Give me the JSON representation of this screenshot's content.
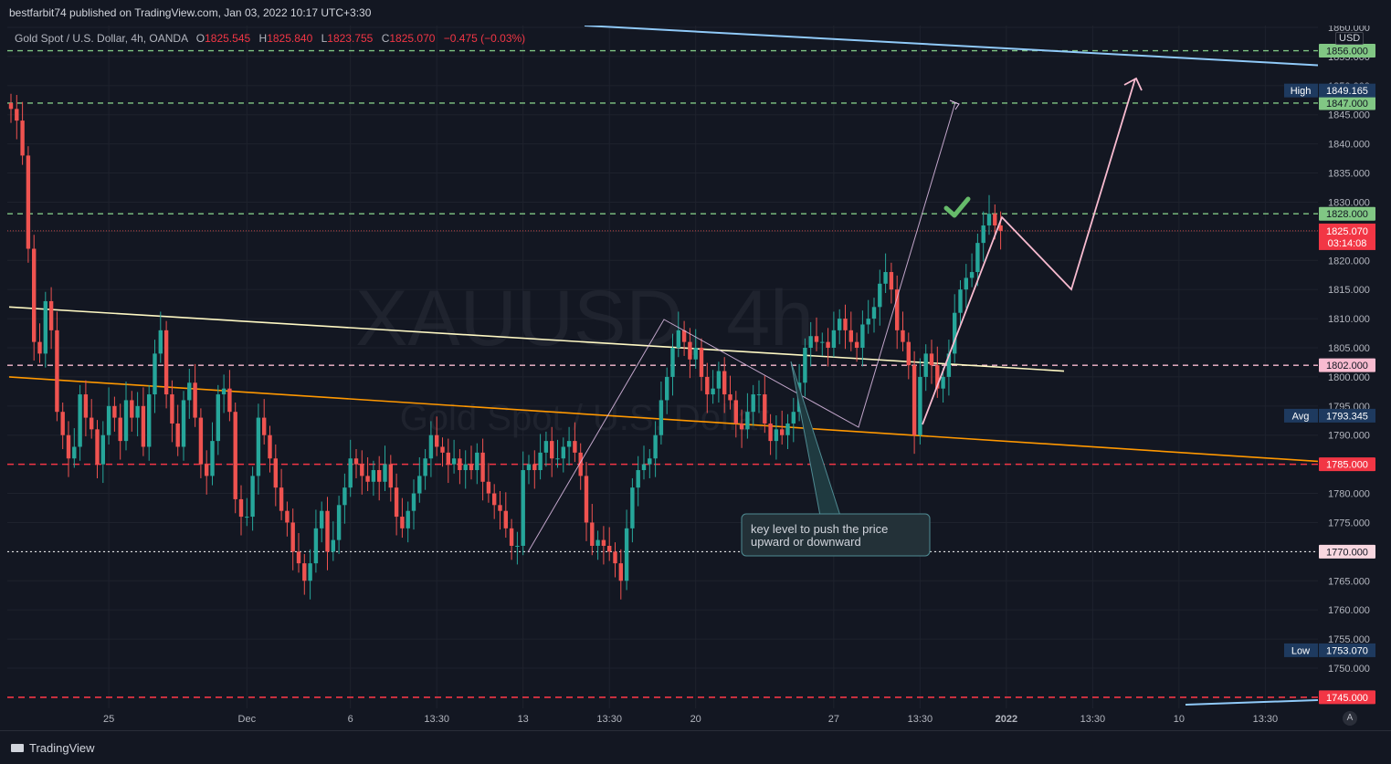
{
  "header": {
    "publisher": "bestfarbit74 published on TradingView.com, Jan 03, 2022 10:17 UTC+3:30"
  },
  "legend": {
    "symbol": "Gold Spot / U.S. Dollar, 4h, OANDA",
    "open_label": "O",
    "open": "1825.545",
    "high_label": "H",
    "high": "1825.840",
    "low_label": "L",
    "low": "1823.755",
    "close_label": "C",
    "close": "1825.070",
    "change": "−0.475 (−0.03%)"
  },
  "watermark": {
    "symbol": "XAUUSD, 4h",
    "name": "Gold Spot / U.S. Dollar"
  },
  "currency": "USD",
  "footer": {
    "brand": "TradingView",
    "auto_label": "A"
  },
  "colors": {
    "background": "#131722",
    "up_candle": "#26a69a",
    "down_candle": "#ef5350",
    "green_level": "#81c784",
    "red_level": "#f23645",
    "white_level": "#ffffff",
    "pink_level": "#f8bbd0",
    "yellow_trendline": "#fff9c4",
    "orange_trendline": "#ff9800",
    "blue_trendline": "#90caf9",
    "projection": "#f8bbd0"
  },
  "chart_data": {
    "type": "candlestick",
    "timeframe": "4h",
    "ylim": [
      1745,
      1862
    ],
    "y_ticks": [
      1750,
      1755,
      1760,
      1765,
      1770,
      1775,
      1780,
      1785,
      1790,
      1795,
      1800,
      1805,
      1810,
      1815,
      1820,
      1825,
      1830,
      1835,
      1840,
      1845,
      1850,
      1855,
      1860
    ],
    "x_ticks": [
      {
        "label": "25",
        "bar": 17
      },
      {
        "label": "Dec",
        "bar": 41
      },
      {
        "label": "6",
        "bar": 59
      },
      {
        "label": "13:30",
        "bar": 74
      },
      {
        "label": "13",
        "bar": 89
      },
      {
        "label": "13:30",
        "bar": 104
      },
      {
        "label": "20",
        "bar": 119
      },
      {
        "label": "27",
        "bar": 143
      },
      {
        "label": "13:30",
        "bar": 158
      },
      {
        "label": "2022",
        "bar": 173
      },
      {
        "label": "13:30",
        "bar": 188
      },
      {
        "label": "10",
        "bar": 203
      },
      {
        "label": "13:30",
        "bar": 218
      }
    ],
    "closes": [
      1846,
      1844,
      1838,
      1822,
      1806,
      1804,
      1813,
      1808,
      1794,
      1790,
      1786,
      1788,
      1797,
      1793,
      1791,
      1785,
      1790,
      1795,
      1793,
      1789,
      1796,
      1793,
      1795,
      1788,
      1797,
      1804,
      1808,
      1797,
      1792,
      1788,
      1796,
      1799,
      1793,
      1785,
      1783,
      1789,
      1797,
      1798,
      1794,
      1779,
      1776,
      1776,
      1783,
      1793,
      1790,
      1786,
      1781,
      1777,
      1775,
      1770,
      1768,
      1765,
      1768,
      1774,
      1777,
      1770,
      1772,
      1778,
      1781,
      1786,
      1785,
      1783,
      1782,
      1784,
      1782,
      1785,
      1781,
      1776,
      1774,
      1777,
      1780,
      1783,
      1786,
      1790,
      1788,
      1787,
      1785,
      1786,
      1784,
      1785,
      1784,
      1787,
      1782,
      1780,
      1778,
      1777,
      1774,
      1771,
      1771,
      1784,
      1785,
      1784,
      1787,
      1789,
      1786,
      1786,
      1788,
      1789,
      1787,
      1783,
      1775,
      1771,
      1772,
      1771,
      1770,
      1768,
      1765,
      1774,
      1781,
      1784,
      1785,
      1786,
      1790,
      1796,
      1800,
      1805,
      1808,
      1806,
      1803,
      1805,
      1800,
      1797,
      1798,
      1801,
      1797,
      1796,
      1792,
      1791,
      1794,
      1797,
      1797,
      1792,
      1789,
      1791,
      1790,
      1792,
      1794,
      1799,
      1805,
      1807,
      1806,
      1806,
      1805,
      1808,
      1810,
      1808,
      1806,
      1805,
      1809,
      1810,
      1812,
      1816,
      1818,
      1815,
      1808,
      1806,
      1802,
      1790,
      1800,
      1804,
      1802,
      1798,
      1800,
      1804,
      1811,
      1815,
      1817,
      1818,
      1823,
      1826,
      1828,
      1826,
      1825.07
    ],
    "price_levels": [
      {
        "value": 1856.0,
        "label": "1856.000",
        "style": "green-dashed"
      },
      {
        "value": 1847.0,
        "label": "1847.000",
        "style": "green-dashed"
      },
      {
        "value": 1828.0,
        "label": "1828.000",
        "style": "green-dashed"
      },
      {
        "value": 1802.0,
        "label": "1802.000",
        "style": "pink-dashed"
      },
      {
        "value": 1785.0,
        "label": "1785.000",
        "style": "red-dashed"
      },
      {
        "value": 1770.0,
        "label": "1770.000",
        "style": "white-dotted"
      },
      {
        "value": 1745.0,
        "label": "1745.000",
        "style": "red-dashed"
      }
    ],
    "markers": [
      {
        "tag": "High",
        "value": 1849.165,
        "label": "1849.165"
      },
      {
        "tag": "Avg",
        "value": 1793.345,
        "label": "1793.345"
      },
      {
        "tag": "Low",
        "value": 1753.07,
        "label": "1753.070"
      }
    ],
    "current_price": {
      "value": 1825.07,
      "label": "1825.070",
      "countdown": "03:14:08"
    },
    "annotation": {
      "text_line1": "key level to push the price",
      "text_line2": "upward or downward"
    }
  }
}
